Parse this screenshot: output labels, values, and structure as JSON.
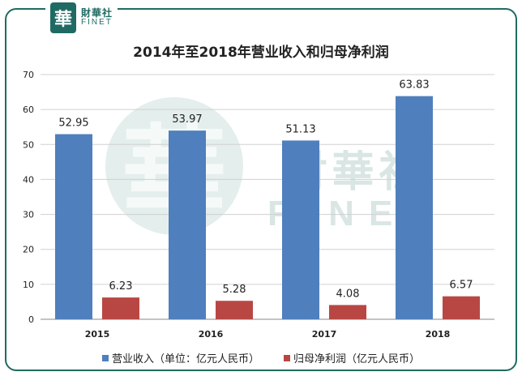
{
  "brand": {
    "glyph": "華",
    "name_cn": "財華社",
    "name_en": "FINET"
  },
  "watermark": {
    "glyph": "華",
    "name_cn": "財華社",
    "name_en": "FINET"
  },
  "colors": {
    "frame": "#1f6b63",
    "revenue": "#4f7fbd",
    "profit": "#b84744"
  },
  "chart_data": {
    "type": "bar",
    "title": "2014年至2018年营业收入和归母净利润",
    "categories": [
      "2015",
      "2016",
      "2017",
      "2018"
    ],
    "series": [
      {
        "name": "营业收入（单位：亿元人民币）",
        "values": [
          52.95,
          53.97,
          51.13,
          63.83
        ],
        "labels": [
          "52.95",
          "53.97",
          "51.13",
          "63.83"
        ],
        "color": "#4f7fbd"
      },
      {
        "name": "归母净利润（亿元人民币）",
        "values": [
          6.23,
          5.28,
          4.08,
          6.57
        ],
        "labels": [
          "6.23",
          "5.28",
          "4.08",
          "6.57"
        ],
        "color": "#b84744"
      }
    ],
    "ylim": [
      0,
      70
    ],
    "yticks": [
      "0",
      "10",
      "20",
      "30",
      "40",
      "50",
      "60",
      "70"
    ],
    "grid": true,
    "legend": "bottom"
  }
}
